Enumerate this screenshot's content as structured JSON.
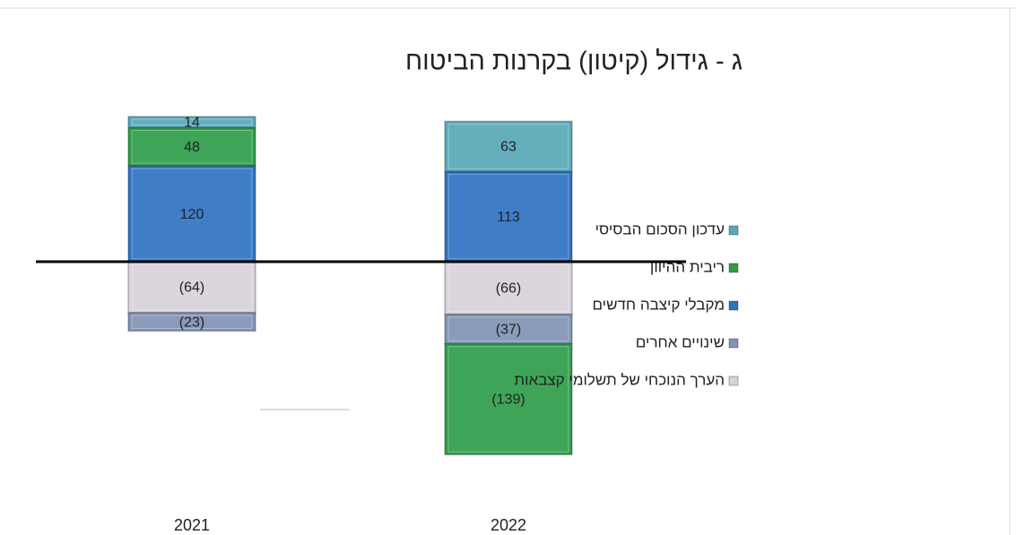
{
  "chart_data": {
    "type": "bar",
    "stacked": true,
    "title": "ג - גידול (קיטון) בקרנות הביטוח",
    "categories": [
      "2021",
      "2022"
    ],
    "series": [
      {
        "name": "עדכון הסכום הבסיסי",
        "color": "#58a9b8",
        "values": [
          14,
          63
        ],
        "value_labels": [
          "14",
          "63"
        ]
      },
      {
        "name": "ריבית ההיוון",
        "color": "#2e9e4a",
        "values": [
          48,
          -139
        ],
        "value_labels": [
          "48",
          "(139)"
        ]
      },
      {
        "name": "מקבלי קיצבה חדשים",
        "color": "#2f72c4",
        "values": [
          120,
          113
        ],
        "value_labels": [
          "120",
          "113"
        ]
      },
      {
        "name": "שינויים אחרים",
        "color": "#8194b5",
        "values": [
          -23,
          -37
        ],
        "value_labels": [
          "(23)",
          "(37)"
        ]
      },
      {
        "name": "הערך הנוכחי של תשלומי קצבאות",
        "color": "#d8d2dc",
        "values": [
          -64,
          -66
        ],
        "value_labels": [
          "(64)",
          "(66)"
        ]
      }
    ],
    "ylim": [
      -250,
      200
    ],
    "legend": "right"
  }
}
